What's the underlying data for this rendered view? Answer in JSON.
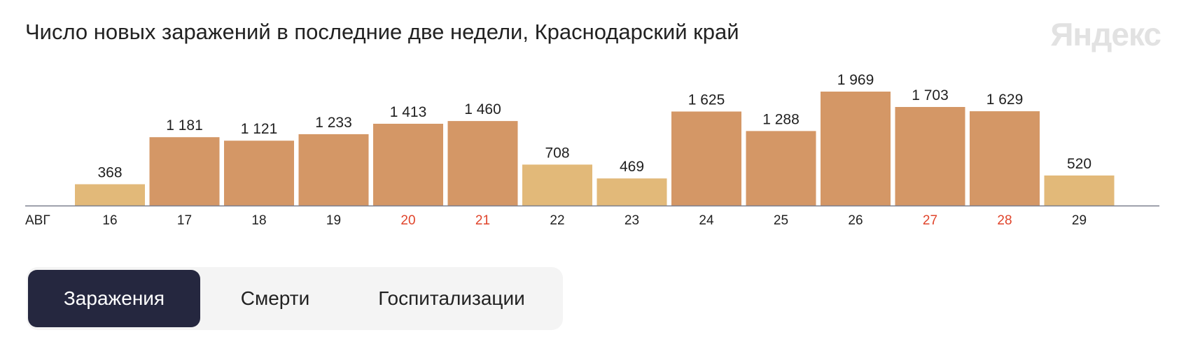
{
  "header": {
    "title": "Число новых заражений в последние две недели, Краснодарский край",
    "logo": "Яндекс"
  },
  "chart_data": {
    "type": "bar",
    "title": "Число новых заражений в последние две недели, Краснодарский край",
    "month_label": "АВГ",
    "categories": [
      "16",
      "17",
      "18",
      "19",
      "20",
      "21",
      "22",
      "23",
      "24",
      "25",
      "26",
      "27",
      "28",
      "29"
    ],
    "values": [
      368,
      1181,
      1121,
      1233,
      1413,
      1460,
      708,
      469,
      1625,
      1288,
      1969,
      1703,
      1629,
      520
    ],
    "value_labels": [
      "368",
      "1 181",
      "1 121",
      "1 233",
      "1 413",
      "1 460",
      "708",
      "469",
      "1 625",
      "1 288",
      "1 969",
      "1 703",
      "1 629",
      "520"
    ],
    "weekend": [
      false,
      false,
      false,
      false,
      true,
      true,
      false,
      false,
      false,
      false,
      false,
      true,
      true,
      false
    ],
    "low_value": [
      true,
      false,
      false,
      false,
      false,
      false,
      true,
      true,
      false,
      false,
      false,
      false,
      false,
      true
    ],
    "ylim": [
      0,
      1969
    ],
    "xlabel": "",
    "ylabel": "",
    "colors": {
      "bar": "#d49766",
      "bar_low": "#e2b979",
      "axis": "#7a7f8e",
      "weekend_text": "#e0442b"
    }
  },
  "tabs": [
    {
      "label": "Заражения",
      "active": true
    },
    {
      "label": "Смерти",
      "active": false
    },
    {
      "label": "Госпитализации",
      "active": false
    }
  ]
}
